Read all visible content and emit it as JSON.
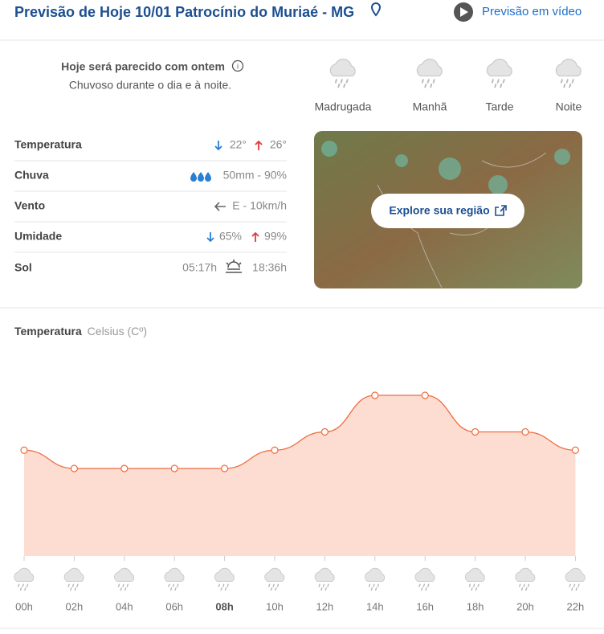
{
  "header": {
    "title": "Previsão de Hoje 10/01 Patrocínio do Muriaé - MG",
    "video_link": "Previsão em vídeo"
  },
  "summary": {
    "headline": "Hoje será parecido com ontem",
    "text": "Chuvoso durante o dia e à noite."
  },
  "periods": [
    "Madrugada",
    "Manhã",
    "Tarde",
    "Noite"
  ],
  "details": [
    {
      "label": "Temperatura",
      "values": [
        "22°",
        "26°"
      ]
    },
    {
      "label": "Chuva",
      "values": [
        "50mm - 90%"
      ]
    },
    {
      "label": "Vento",
      "values": [
        "E - 10km/h"
      ]
    },
    {
      "label": "Umidade",
      "values": [
        "65%",
        "99%"
      ]
    },
    {
      "label": "Sol",
      "values": [
        "05:17h",
        "18:36h"
      ]
    }
  ],
  "map": {
    "button": "Explore sua região"
  },
  "chart_data": {
    "type": "area",
    "title": "Temperatura",
    "subtitle": "Celsius (Cº)",
    "categories": [
      "00h",
      "02h",
      "04h",
      "06h",
      "08h",
      "10h",
      "12h",
      "14h",
      "16h",
      "18h",
      "20h",
      "22h"
    ],
    "values": [
      23,
      22,
      22,
      22,
      22,
      23,
      24,
      26,
      26,
      24,
      24,
      23
    ],
    "color": "#ee6b3f",
    "fill": "#fdddd2"
  }
}
